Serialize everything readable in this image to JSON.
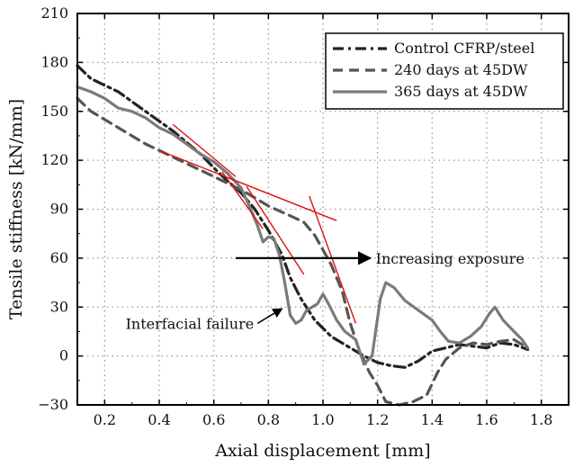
{
  "chart_data": {
    "type": "line",
    "xlabel": "Axial displacement [mm]",
    "ylabel": "Tensile stiffness [kN/mm]",
    "xlim": [
      0.1,
      1.9
    ],
    "ylim": [
      -30,
      210
    ],
    "xticks": [
      0.2,
      0.4,
      0.6,
      0.8,
      1.0,
      1.2,
      1.4,
      1.6,
      1.8
    ],
    "xtick_labels": [
      "0.2",
      "0.4",
      "0.6",
      "0.8",
      "1.0",
      "1.2",
      "1.4",
      "1.6",
      "1.8"
    ],
    "yticks": [
      -30,
      0,
      30,
      60,
      90,
      120,
      150,
      180,
      210
    ],
    "ytick_labels": [
      "−30",
      "0",
      "30",
      "60",
      "90",
      "120",
      "150",
      "180",
      "210"
    ],
    "grid": true,
    "legend_position": "top-right",
    "series": [
      {
        "name": "Control CFRP/steel",
        "style": "dash-dot",
        "color": "#222222",
        "points": [
          [
            0.1,
            178
          ],
          [
            0.15,
            170
          ],
          [
            0.25,
            162
          ],
          [
            0.35,
            150
          ],
          [
            0.45,
            138
          ],
          [
            0.55,
            124
          ],
          [
            0.62,
            112
          ],
          [
            0.7,
            100
          ],
          [
            0.75,
            90
          ],
          [
            0.8,
            77
          ],
          [
            0.85,
            62
          ],
          [
            0.88,
            48
          ],
          [
            0.92,
            35
          ],
          [
            0.97,
            22
          ],
          [
            1.03,
            12
          ],
          [
            1.1,
            5
          ],
          [
            1.15,
            0
          ],
          [
            1.2,
            -4
          ],
          [
            1.25,
            -6
          ],
          [
            1.3,
            -7
          ],
          [
            1.35,
            -3
          ],
          [
            1.4,
            3
          ],
          [
            1.45,
            5
          ],
          [
            1.5,
            7
          ],
          [
            1.55,
            6
          ],
          [
            1.6,
            5
          ],
          [
            1.65,
            8
          ],
          [
            1.7,
            7
          ],
          [
            1.75,
            4
          ]
        ]
      },
      {
        "name": "240 days at 45DW",
        "style": "dashed",
        "color": "#555555",
        "points": [
          [
            0.1,
            158
          ],
          [
            0.15,
            150
          ],
          [
            0.25,
            140
          ],
          [
            0.35,
            130
          ],
          [
            0.45,
            122
          ],
          [
            0.55,
            114
          ],
          [
            0.65,
            106
          ],
          [
            0.72,
            100
          ],
          [
            0.8,
            92
          ],
          [
            0.88,
            86
          ],
          [
            0.93,
            82
          ],
          [
            0.97,
            74
          ],
          [
            1.0,
            65
          ],
          [
            1.03,
            56
          ],
          [
            1.07,
            40
          ],
          [
            1.1,
            20
          ],
          [
            1.13,
            5
          ],
          [
            1.17,
            -10
          ],
          [
            1.2,
            -18
          ],
          [
            1.23,
            -28
          ],
          [
            1.28,
            -30
          ],
          [
            1.33,
            -28
          ],
          [
            1.38,
            -24
          ],
          [
            1.42,
            -10
          ],
          [
            1.45,
            -2
          ],
          [
            1.5,
            5
          ],
          [
            1.55,
            8
          ],
          [
            1.6,
            7
          ],
          [
            1.65,
            9
          ],
          [
            1.7,
            10
          ],
          [
            1.75,
            5
          ]
        ]
      },
      {
        "name": "365 days at 45DW",
        "style": "solid",
        "color": "#7a7a7a",
        "points": [
          [
            0.1,
            165
          ],
          [
            0.15,
            162
          ],
          [
            0.2,
            158
          ],
          [
            0.25,
            152
          ],
          [
            0.3,
            150
          ],
          [
            0.35,
            146
          ],
          [
            0.4,
            140
          ],
          [
            0.45,
            136
          ],
          [
            0.5,
            130
          ],
          [
            0.55,
            124
          ],
          [
            0.6,
            119
          ],
          [
            0.65,
            112
          ],
          [
            0.7,
            103
          ],
          [
            0.73,
            92
          ],
          [
            0.76,
            80
          ],
          [
            0.78,
            70
          ],
          [
            0.8,
            73
          ],
          [
            0.82,
            72
          ],
          [
            0.84,
            62
          ],
          [
            0.86,
            45
          ],
          [
            0.88,
            25
          ],
          [
            0.9,
            20
          ],
          [
            0.92,
            22
          ],
          [
            0.94,
            28
          ],
          [
            0.98,
            32
          ],
          [
            1.0,
            38
          ],
          [
            1.02,
            32
          ],
          [
            1.05,
            22
          ],
          [
            1.08,
            15
          ],
          [
            1.12,
            10
          ],
          [
            1.15,
            -5
          ],
          [
            1.18,
            0
          ],
          [
            1.21,
            35
          ],
          [
            1.23,
            45
          ],
          [
            1.26,
            42
          ],
          [
            1.3,
            34
          ],
          [
            1.35,
            28
          ],
          [
            1.4,
            22
          ],
          [
            1.43,
            15
          ],
          [
            1.46,
            9
          ],
          [
            1.5,
            8
          ],
          [
            1.54,
            12
          ],
          [
            1.58,
            18
          ],
          [
            1.61,
            26
          ],
          [
            1.63,
            30
          ],
          [
            1.66,
            22
          ],
          [
            1.7,
            15
          ],
          [
            1.73,
            10
          ],
          [
            1.75,
            5
          ]
        ]
      }
    ],
    "tangent_lines_color": "#e01010",
    "tangent_lines": [
      [
        [
          0.45,
          142
        ],
        [
          0.68,
          110
        ]
      ],
      [
        [
          0.4,
          126
        ],
        [
          1.05,
          83
        ]
      ],
      [
        [
          0.63,
          113
        ],
        [
          0.78,
          78
        ]
      ],
      [
        [
          0.72,
          104
        ],
        [
          0.93,
          50
        ]
      ],
      [
        [
          0.95,
          98
        ],
        [
          1.12,
          20
        ]
      ]
    ],
    "annotations": {
      "increasing_exposure": "Increasing exposure",
      "interfacial_failure": "Interfacial failure"
    },
    "arrow_increasing_exposure": {
      "from": [
        0.68,
        60
      ],
      "to": [
        1.2,
        60
      ]
    },
    "arrow_interfacial_failure": {
      "from": [
        0.76,
        20
      ],
      "to": [
        0.85,
        29
      ]
    }
  }
}
